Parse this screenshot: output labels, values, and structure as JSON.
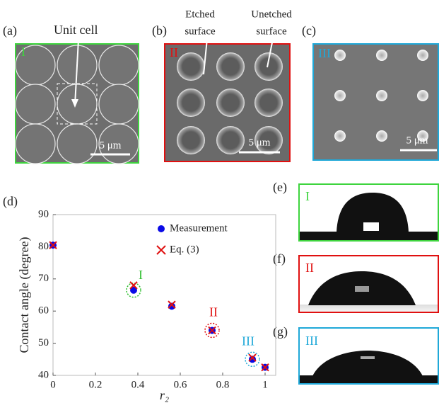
{
  "panels": {
    "a": {
      "label": "(a)",
      "roman": "I",
      "annotation": "Unit cell",
      "scale": "5 μm"
    },
    "b": {
      "label": "(b)",
      "roman": "II",
      "annotation_left": [
        "Etched",
        "surface"
      ],
      "annotation_right": [
        "Unetched",
        "surface"
      ],
      "scale": "5 μm"
    },
    "c": {
      "label": "(c)",
      "roman": "III",
      "scale": "5 μm"
    },
    "e": {
      "label": "(e)",
      "roman": "I"
    },
    "f": {
      "label": "(f)",
      "roman": "II"
    },
    "g": {
      "label": "(g)",
      "roman": "III"
    }
  },
  "chart_data": {
    "type": "scatter",
    "label": "(d)",
    "y_label": "Contact angle (degree)",
    "x_label": "r₂",
    "xlim": [
      0,
      1.05
    ],
    "ylim": [
      40,
      90
    ],
    "xticks": [
      0,
      0.2,
      0.4,
      0.6,
      0.8,
      1
    ],
    "yticks": [
      40,
      50,
      60,
      70,
      80,
      90
    ],
    "series": [
      {
        "name": "Measurement",
        "color": "#0a0ae6",
        "marker": "circle",
        "x": [
          0,
          0.38,
          0.56,
          0.75,
          0.94,
          1.0
        ],
        "values": [
          80.5,
          66.5,
          61.5,
          54,
          45,
          42.5
        ]
      },
      {
        "name": "Eq. (3)",
        "color": "#e01010",
        "marker": "cross",
        "x": [
          0,
          0.38,
          0.56,
          0.75,
          0.94,
          1.0
        ],
        "values": [
          80.5,
          68,
          62,
          54,
          45.5,
          42.5
        ]
      }
    ],
    "annotations": [
      {
        "text": "I",
        "color": "#2fbf2f"
      },
      {
        "text": "II",
        "color": "#e01010"
      },
      {
        "text": "III",
        "color": "#1fa8d8"
      }
    ]
  }
}
